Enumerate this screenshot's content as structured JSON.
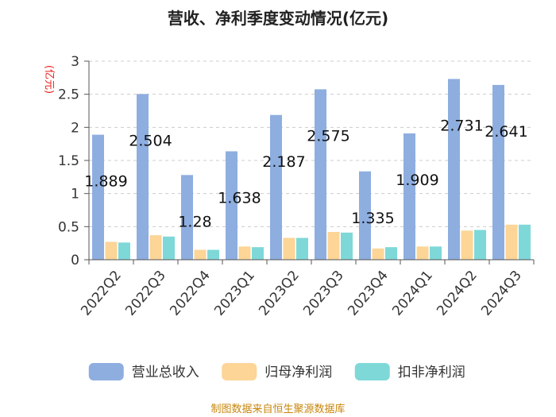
{
  "chart_data": {
    "type": "bar",
    "title": "营收、净利季度变动情况(亿元)",
    "ylabel": "(亿元)",
    "ylim": [
      0,
      3
    ],
    "yticks": [
      "0",
      "0.5",
      "1",
      "1.5",
      "2",
      "2.5",
      "3"
    ],
    "categories": [
      "2022Q2",
      "2022Q3",
      "2022Q4",
      "2023Q1",
      "2023Q2",
      "2023Q3",
      "2023Q4",
      "2024Q1",
      "2024Q2",
      "2024Q3"
    ],
    "series": [
      {
        "name": "营业总收入",
        "color": "#8eaee0",
        "values": [
          1.889,
          2.504,
          1.28,
          1.638,
          2.187,
          2.575,
          1.335,
          1.909,
          2.731,
          2.641
        ],
        "labels": [
          "1.889",
          "2.504",
          "1.28",
          "1.638",
          "2.187",
          "2.575",
          "1.335",
          "1.909",
          "2.731",
          "2.641"
        ]
      },
      {
        "name": "归母净利润",
        "color": "#fcd597",
        "values": [
          0.27,
          0.37,
          0.15,
          0.2,
          0.33,
          0.42,
          0.17,
          0.2,
          0.44,
          0.53
        ]
      },
      {
        "name": "扣非净利润",
        "color": "#7fd8d8",
        "values": [
          0.26,
          0.35,
          0.15,
          0.19,
          0.33,
          0.41,
          0.19,
          0.2,
          0.45,
          0.53
        ]
      }
    ],
    "grid": true,
    "legend": "bottom"
  },
  "footer": {
    "source": "制图数据来自恒生聚源数据库"
  }
}
